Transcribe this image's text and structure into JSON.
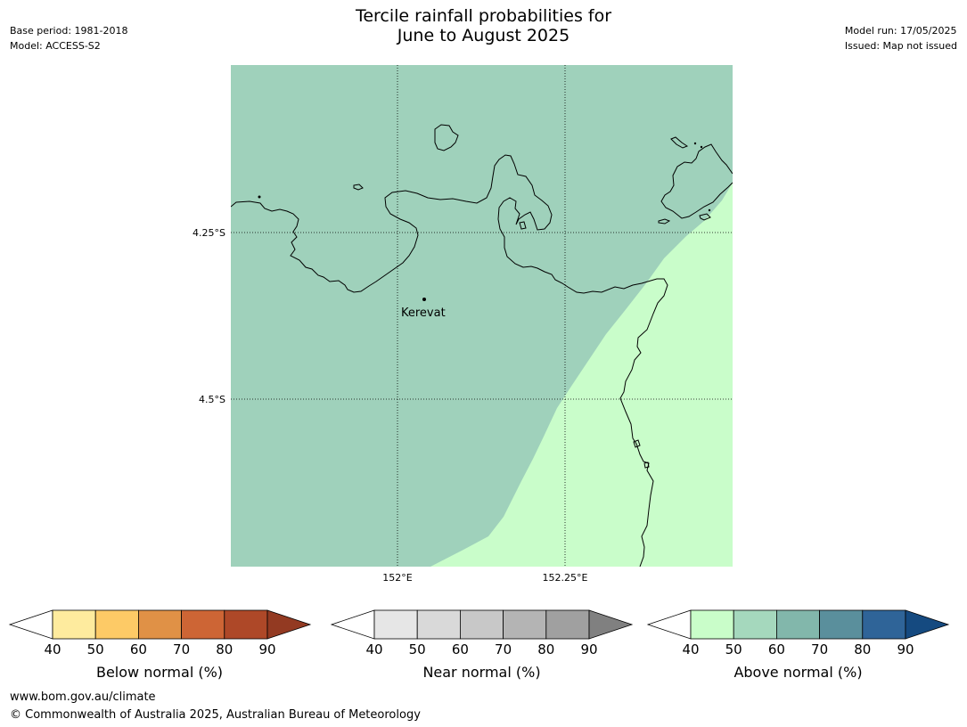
{
  "title": {
    "line1": "Tercile rainfall probabilities for",
    "line2": "June to August 2025"
  },
  "meta_left": {
    "base_period": "Base period: 1981-2018",
    "model": "Model: ACCESS-S2"
  },
  "meta_right": {
    "model_run": "Model run: 17/05/2025",
    "issued": "Issued: Map not issued"
  },
  "map": {
    "place_label": "Kerevat",
    "lat_labels": [
      "4.25°S",
      "4.5°S"
    ],
    "lon_labels": [
      "152°E",
      "152.25°E"
    ]
  },
  "colorbars": [
    {
      "label": "Below normal (%)",
      "ticks": [
        "40",
        "50",
        "60",
        "70",
        "80",
        "90"
      ],
      "colors": [
        "#ffffff",
        "#feeb9e",
        "#fdca66",
        "#e09146",
        "#cd6535",
        "#ae4828",
        "#933a22"
      ]
    },
    {
      "label": "Near normal (%)",
      "ticks": [
        "40",
        "50",
        "60",
        "70",
        "80",
        "90"
      ],
      "colors": [
        "#ffffff",
        "#e6e6e6",
        "#d9d9d9",
        "#c8c8c8",
        "#b4b4b4",
        "#a0a0a0",
        "#808080"
      ]
    },
    {
      "label": "Above normal (%)",
      "ticks": [
        "40",
        "50",
        "60",
        "70",
        "80",
        "90"
      ],
      "colors": [
        "#ffffff",
        "#c9fdc9",
        "#a5d8bd",
        "#82b7ab",
        "#5a8f9c",
        "#2f6498",
        "#154a80"
      ]
    }
  ],
  "shading_colors": {
    "above_50_60": "#9fd1bb",
    "above_40_50": "#c9fdca"
  },
  "footer": {
    "url": "www.bom.gov.au/climate",
    "copyright": "© Commonwealth of Australia 2025, Australian Bureau of Meteorology"
  }
}
